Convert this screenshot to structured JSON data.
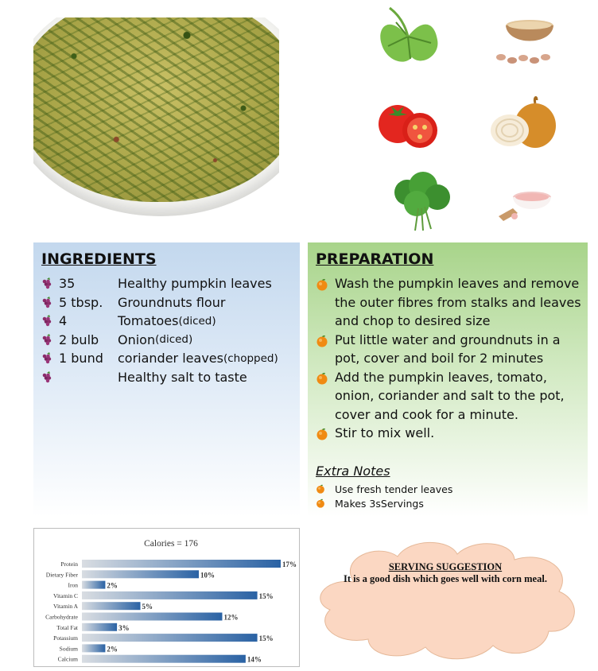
{
  "ingredients": {
    "title": "INGREDIENTS",
    "items": [
      {
        "qty": "35",
        "name": "Healthy pumpkin leaves",
        "note": ""
      },
      {
        "qty": "5 tbsp.",
        "name": "Groundnuts flour",
        "note": ""
      },
      {
        "qty": "4",
        "name": "Tomatoes ",
        "note": "(diced)"
      },
      {
        "qty": "2 bulb",
        "name": "Onion ",
        "note": "(diced)"
      },
      {
        "qty": "1 bund",
        "name": "coriander leaves ",
        "note": "(chopped)"
      },
      {
        "qty": "",
        "name": "Healthy salt to taste",
        "note": ""
      }
    ]
  },
  "preparation": {
    "title": "PREPARATION",
    "steps": [
      "Wash the pumpkin leaves and remove the outer fibres from stalks and leaves and chop to desired size",
      "Put little water and groundnuts in a pot, cover and boil for 2 minutes",
      "Add the pumpkin leaves, tomato, onion, coriander and salt to the pot, cover and cook for a minute.",
      "Stir to mix well."
    ],
    "extra_title": "Extra Notes",
    "extra_notes": [
      "Use fresh tender leaves",
      "Makes 3sServings"
    ]
  },
  "serving": {
    "title": "SERVING SUGGESTION",
    "text": "It is a good dish which goes well with corn meal."
  },
  "icons": {
    "ingredient_bullet": "grape-icon",
    "prep_bullet": "orange-fruit-icon"
  },
  "colors": {
    "ingredients_panel": "#c3d8ee",
    "preparation_panel": "#a8d48a",
    "cloud_fill": "#fbd7c2",
    "bar_dark": "#2a62a4"
  },
  "chart_data": {
    "type": "bar",
    "orientation": "horizontal",
    "title": "Calories = 176",
    "categories": [
      "Protein",
      "Dietary Fiber",
      "Iron",
      "Vitamin C",
      "Vitamin A",
      "Carbohydrate",
      "Total Fat",
      "Potassium",
      "Sodium",
      "Calcium"
    ],
    "values": [
      17,
      10,
      2,
      15,
      5,
      12,
      3,
      15,
      2,
      14
    ],
    "value_labels": [
      "17%",
      "10%",
      "2%",
      "15%",
      "5%",
      "12%",
      "3%",
      "15%",
      "2%",
      "14%"
    ],
    "unit": "%",
    "xlim": [
      0,
      17
    ],
    "grid": false,
    "legend": "none"
  }
}
